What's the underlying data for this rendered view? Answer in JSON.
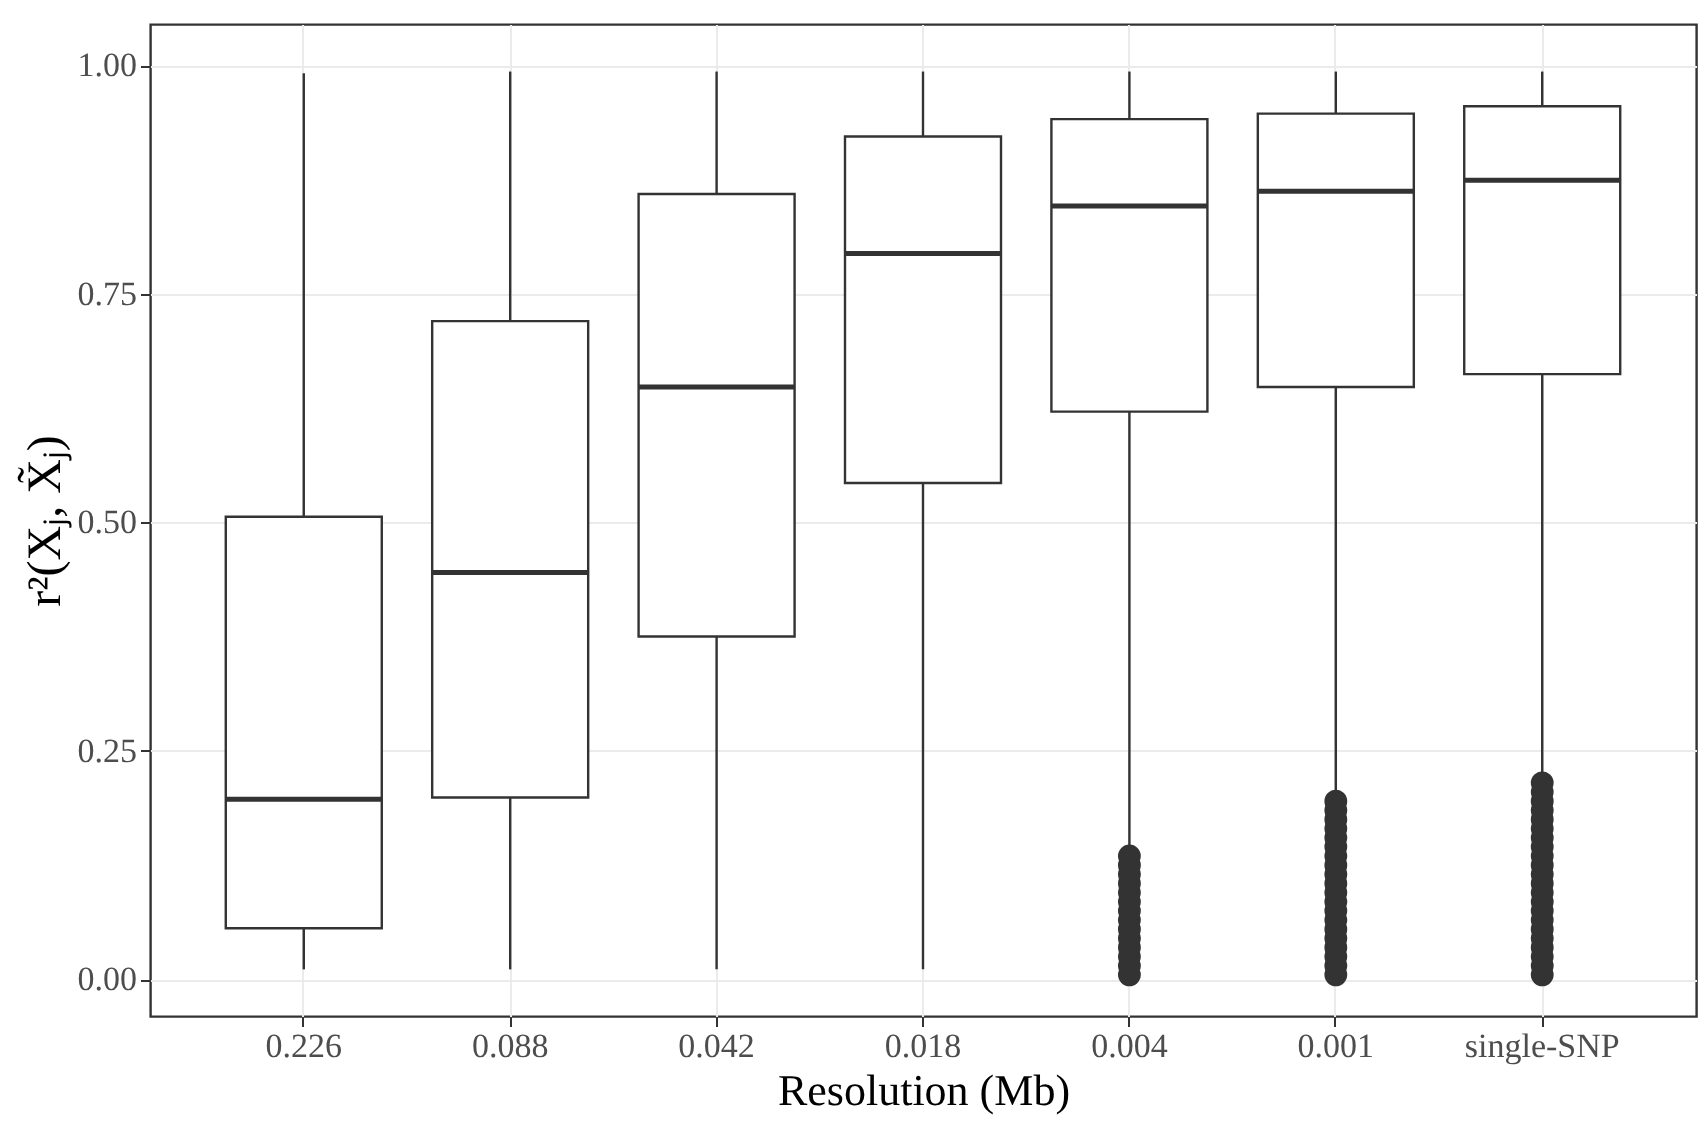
{
  "chart_data": {
    "type": "box",
    "xlabel": "Resolution (Mb)",
    "ylabel": "r²(Xⱼ, X̃ⱼ)",
    "categories": [
      "0.226",
      "0.088",
      "0.042",
      "0.018",
      "0.004",
      "0.001",
      "single-SNP"
    ],
    "boxes": [
      {
        "low": 0.011,
        "q1": 0.056,
        "median": 0.197,
        "q3": 0.506,
        "high": 0.991
      },
      {
        "low": 0.011,
        "q1": 0.199,
        "median": 0.445,
        "q3": 0.72,
        "high": 0.993
      },
      {
        "low": 0.011,
        "q1": 0.375,
        "median": 0.648,
        "q3": 0.859,
        "high": 0.993
      },
      {
        "low": 0.011,
        "q1": 0.543,
        "median": 0.794,
        "q3": 0.922,
        "high": 0.993
      },
      {
        "low": 0.14,
        "q1": 0.621,
        "median": 0.846,
        "q3": 0.941,
        "high": 0.993,
        "outliers": [
          0.005,
          0.015,
          0.025,
          0.035,
          0.045,
          0.055,
          0.065,
          0.075,
          0.085,
          0.095,
          0.105,
          0.115,
          0.125,
          0.135
        ]
      },
      {
        "low": 0.2,
        "q1": 0.648,
        "median": 0.862,
        "q3": 0.947,
        "high": 0.993,
        "outliers": [
          0.005,
          0.015,
          0.025,
          0.035,
          0.045,
          0.055,
          0.065,
          0.075,
          0.085,
          0.095,
          0.105,
          0.115,
          0.125,
          0.135,
          0.145,
          0.155,
          0.165,
          0.175,
          0.185,
          0.195
        ]
      },
      {
        "low": 0.223,
        "q1": 0.662,
        "median": 0.874,
        "q3": 0.955,
        "high": 0.993,
        "outliers": [
          0.005,
          0.015,
          0.025,
          0.035,
          0.045,
          0.055,
          0.065,
          0.075,
          0.085,
          0.095,
          0.105,
          0.115,
          0.125,
          0.135,
          0.145,
          0.155,
          0.165,
          0.175,
          0.185,
          0.195,
          0.205,
          0.215
        ]
      }
    ],
    "ylim": [
      -0.04,
      1.045
    ],
    "yticks": [
      {
        "value": 0,
        "label": "0.00"
      },
      {
        "value": 0.25,
        "label": "0.25"
      },
      {
        "value": 0.5,
        "label": "0.50"
      },
      {
        "value": 0.75,
        "label": "0.75"
      },
      {
        "value": 1,
        "label": "1.00"
      }
    ],
    "grid": true
  }
}
